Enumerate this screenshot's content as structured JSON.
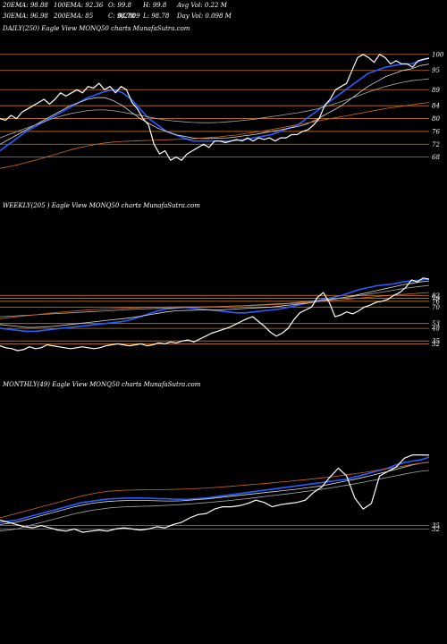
{
  "header": {
    "ema20": "20EMA: 98.88",
    "ema100": "100EMA: 92.36",
    "open": "O: 99.8",
    "high": "H: 99.8",
    "avg_vol": "Avg Vol: 0.22  M",
    "ema30": "30EMA: 96.98",
    "ema200": "200EMA: 85",
    "close": "C: 98.78",
    "low": "L: 98.78",
    "day_vol": "Day Vol: 0.098  M",
    "overlap": "0/2809"
  },
  "panels": {
    "daily_label": "DAILY(250) Eagle  View  MONQ50  charts MunafaSutra.com",
    "weekly_label": "WEEKLY(205                          ) Eagle  View  MONQ50  charts MunafaSutra.com",
    "monthly_label": "MONTHLY(49) Eagle  View  MONQ50  charts MunafaSutra.com"
  },
  "colors": {
    "background": "#000000",
    "price": "#ffffff",
    "ema_blue": "#2b5cff",
    "ema_magenta": "#ff44ff",
    "ema_orange": "#d2691e",
    "gridline": "#c8761e"
  },
  "chart_data": [
    {
      "type": "line",
      "title": "DAILY(250)",
      "y_ticks": [
        100,
        95,
        89,
        84,
        80,
        76,
        72,
        68
      ],
      "ylim": [
        64,
        103
      ],
      "series": [
        {
          "role": "price",
          "values": [
            80,
            79.5,
            81,
            80,
            82,
            83,
            84,
            85,
            86,
            84.5,
            86,
            88,
            87,
            88,
            89,
            88,
            90,
            89.5,
            91,
            89,
            90,
            88,
            90,
            89,
            85,
            83,
            80,
            78,
            72,
            69,
            70,
            67,
            68,
            67,
            69,
            70,
            71,
            72,
            71,
            73,
            73,
            72.5,
            73,
            73.5,
            73,
            74,
            73,
            74,
            73.5,
            74,
            73,
            74,
            74,
            75,
            75,
            76,
            76.5,
            78,
            80,
            84,
            86,
            89,
            90,
            91,
            95,
            99,
            100,
            99,
            97.5,
            100,
            99,
            97,
            98,
            97,
            97,
            96,
            98,
            98.5,
            98.78
          ]
        },
        {
          "role": "ema",
          "values": [
            70,
            72,
            74,
            76,
            77.5,
            79,
            80.5,
            82,
            83.5,
            85,
            86.5,
            87.5,
            88.5,
            89,
            88,
            86,
            83,
            80,
            78,
            76,
            75,
            74,
            73,
            73,
            73,
            73,
            73,
            73.2,
            73.5,
            74,
            74.5,
            75,
            76,
            77,
            78,
            80,
            82,
            84,
            86,
            88,
            90,
            92,
            94,
            95,
            96,
            96.5,
            97,
            97,
            98,
            98.88
          ]
        },
        {
          "role": "ema",
          "values": [
            72,
            73.5,
            75,
            76.5,
            78,
            79.5,
            81,
            82.5,
            84,
            85,
            86,
            86.5,
            86.5,
            85.5,
            84,
            82,
            80,
            78.5,
            77,
            76,
            75,
            74.5,
            74,
            73.8,
            73.8,
            73.9,
            74,
            74.3,
            74.7,
            75,
            75.5,
            76,
            76.5,
            77,
            77.5,
            78.3,
            79.5,
            81,
            82.5,
            84,
            86,
            88,
            90,
            91.5,
            93,
            94,
            95,
            95.5,
            96.5,
            96.98
          ]
        },
        {
          "role": "ema",
          "values": [
            74,
            75,
            76,
            77,
            78,
            79,
            80,
            80.8,
            81.5,
            82,
            82.5,
            82.7,
            82.7,
            82.4,
            82,
            81.5,
            81,
            80.5,
            80,
            79.5,
            79.2,
            79,
            78.8,
            78.7,
            78.7,
            78.8,
            79,
            79.2,
            79.5,
            79.8,
            80.2,
            80.6,
            81,
            81.4,
            81.8,
            82.3,
            82.9,
            83.6,
            84.4,
            85.3,
            86.2,
            87.2,
            88.2,
            89.1,
            90,
            90.7,
            91.3,
            91.8,
            92.1,
            92.36
          ]
        },
        {
          "role": "ema",
          "values": [
            64.5,
            65,
            65.6,
            66.3,
            67,
            67.8,
            68.6,
            69.4,
            70.2,
            70.9,
            71.5,
            72,
            72.4,
            72.7,
            72.9,
            73,
            73.1,
            73.2,
            73.3,
            73.4,
            73.5,
            73.6,
            73.7,
            73.9,
            74.1,
            74.3,
            74.6,
            74.9,
            75.3,
            75.7,
            76.1,
            76.6,
            77.1,
            77.6,
            78.1,
            78.6,
            79.1,
            79.6,
            80.1,
            80.6,
            81.1,
            81.6,
            82.1,
            82.6,
            83.1,
            83.5,
            83.9,
            84.3,
            84.7,
            85
          ]
        }
      ]
    },
    {
      "type": "line",
      "title": "WEEKLY(205)",
      "y_ticks": [
        82,
        79,
        76,
        70,
        53,
        48,
        35,
        32
      ],
      "ylim": [
        25,
        110
      ],
      "series": [
        {
          "role": "price",
          "values": [
            30,
            28,
            27,
            25,
            26,
            29,
            27,
            28,
            31,
            30,
            29,
            28,
            27,
            28,
            29,
            28,
            27,
            28,
            30,
            31,
            32,
            31,
            30,
            31,
            32,
            30,
            31,
            33,
            32,
            34,
            33,
            35,
            36,
            34,
            37,
            40,
            43,
            45,
            47,
            49,
            52,
            55,
            58,
            60,
            55,
            50,
            44,
            40,
            43,
            48,
            57,
            64,
            67,
            70,
            80,
            85,
            75,
            60,
            62,
            65,
            63,
            66,
            70,
            72,
            75,
            76,
            78,
            82,
            85,
            90,
            98,
            96,
            100,
            98.78
          ]
        },
        {
          "role": "ema",
          "values": [
            48,
            47,
            46,
            45,
            45,
            46,
            47,
            48,
            49,
            50,
            51,
            52,
            53,
            54,
            55,
            57,
            60,
            63,
            66,
            68,
            69,
            70,
            69,
            68,
            67,
            66,
            65,
            64,
            64,
            65,
            66,
            67,
            68,
            70,
            72,
            74,
            76,
            78,
            80,
            82,
            85,
            88,
            90,
            92,
            93,
            94,
            96,
            97,
            98,
            98.88
          ]
        },
        {
          "role": "ema",
          "values": [
            52,
            51,
            50,
            49,
            49,
            49.5,
            50,
            51,
            52,
            53,
            54,
            55,
            56,
            57,
            58,
            59,
            60.5,
            62,
            63.5,
            65,
            66,
            66.5,
            66.8,
            67,
            67,
            67,
            67.5,
            68,
            68.5,
            69,
            69.5,
            70,
            71,
            72,
            73,
            74,
            75,
            76.5,
            78,
            79.5,
            81,
            83,
            85,
            87,
            89,
            91,
            93,
            94.5,
            96,
            96.98
          ]
        },
        {
          "role": "ema",
          "values": [
            60,
            60.5,
            61,
            61.5,
            62,
            62.5,
            63,
            63.5,
            64,
            64.5,
            65,
            65.5,
            66,
            66.5,
            67,
            67.5,
            68,
            68.3,
            68.6,
            68.9,
            69.2,
            69.5,
            69.8,
            70,
            70.2,
            70.5,
            70.8,
            71.2,
            71.6,
            72,
            72.5,
            73,
            73.5,
            74,
            74.8,
            75.6,
            76.5,
            77.5,
            78.5,
            79.5,
            80.5,
            81.8,
            83.2,
            84.6,
            86,
            87.5,
            89,
            90.2,
            91.3,
            92.36
          ]
        },
        {
          "role": "ema",
          "values": [
            58,
            59,
            60,
            61,
            62,
            63,
            64,
            64.8,
            65.6,
            66.3,
            67,
            67.5,
            68,
            68.4,
            68.8,
            69.1,
            69.4,
            69.6,
            69.8,
            70,
            70.1,
            70.2,
            70.3,
            70.4,
            70.5,
            70.6,
            70.8,
            71,
            71.3,
            71.6,
            72,
            72.4,
            72.9,
            73.4,
            74,
            74.6,
            75.3,
            76,
            76.8,
            77.6,
            78.4,
            79.2,
            80,
            80.8,
            81.6,
            82.3,
            83,
            83.7,
            84.4,
            85
          ]
        }
      ]
    },
    {
      "type": "line",
      "title": "MONTHLY(49)",
      "y_ticks": [
        35,
        32
      ],
      "ylim": [
        25,
        110
      ],
      "series": [
        {
          "role": "price",
          "values": [
            40,
            38,
            36,
            34,
            33,
            35,
            33,
            31,
            30,
            32,
            29,
            30,
            31,
            30,
            32,
            33,
            32,
            31,
            32,
            34,
            33,
            36,
            38,
            42,
            45,
            46,
            50,
            52,
            52,
            53,
            55,
            58,
            56,
            52,
            54,
            55,
            56,
            58,
            65,
            70,
            79,
            87,
            80,
            60,
            50,
            55,
            80,
            84,
            88,
            96,
            99,
            99,
            98.78
          ]
        },
        {
          "role": "ema",
          "values": [
            38,
            39,
            40,
            42,
            44,
            46,
            48,
            50,
            52,
            54,
            56,
            57,
            58,
            59,
            59.5,
            59.8,
            60,
            60,
            59.8,
            59.5,
            59.3,
            59,
            58.8,
            59,
            59.5,
            60,
            61,
            62,
            63,
            64,
            65,
            66,
            67,
            68,
            69,
            70,
            71,
            72,
            73,
            74,
            75,
            76,
            77,
            79,
            81,
            83,
            85,
            87,
            90,
            92,
            93.5,
            94.5,
            96.98
          ]
        },
        {
          "role": "ema",
          "values": [
            36,
            37,
            38,
            40,
            42,
            44,
            46,
            48,
            50,
            52,
            53.5,
            55,
            56,
            56.8,
            57.3,
            57.6,
            57.8,
            57.8,
            57.7,
            57.5,
            57.3,
            57.3,
            57.5,
            58,
            58.6,
            59.2,
            60,
            60.8,
            61.6,
            62.4,
            63.2,
            64,
            64.8,
            65.6,
            66.4,
            67.2,
            68,
            69,
            70,
            71,
            72.5,
            74,
            75.5,
            77,
            78.7,
            80.4,
            82.2,
            84,
            86,
            88,
            90,
            91.5,
            92.36
          ]
        },
        {
          "role": "ema",
          "values": [
            30,
            31,
            32,
            34,
            36,
            38,
            40,
            42,
            44,
            46,
            47.5,
            49,
            50,
            51,
            51.6,
            52,
            52.3,
            52.5,
            52.7,
            53,
            53.4,
            53.8,
            54.3,
            54.9,
            55.5,
            56.1,
            56.8,
            57.5,
            58.3,
            59.1,
            60,
            60.9,
            61.8,
            62.7,
            63.6,
            64.6,
            65.6,
            66.6,
            67.7,
            68.8,
            70,
            71.3,
            72.6,
            74,
            75.5,
            77,
            78.5,
            80,
            81.5,
            83,
            84.2,
            85
          ]
        },
        {
          "role": "ema",
          "values": [
            42,
            44,
            46,
            48,
            50,
            52,
            54,
            56,
            58,
            60,
            62,
            63.5,
            65,
            66,
            66.5,
            67,
            67.2,
            67.3,
            67.4,
            67.5,
            67.6,
            67.8,
            68,
            68.3,
            68.6,
            69,
            69.5,
            70,
            70.6,
            71.2,
            71.8,
            72.4,
            73,
            73.7,
            74.4,
            75.1,
            75.8,
            76.6,
            77.4,
            78.2,
            79,
            80,
            81,
            82,
            83,
            84.2,
            85.4,
            86.6,
            87.8,
            89,
            90.5,
            91.5,
            92.36
          ]
        }
      ]
    }
  ]
}
